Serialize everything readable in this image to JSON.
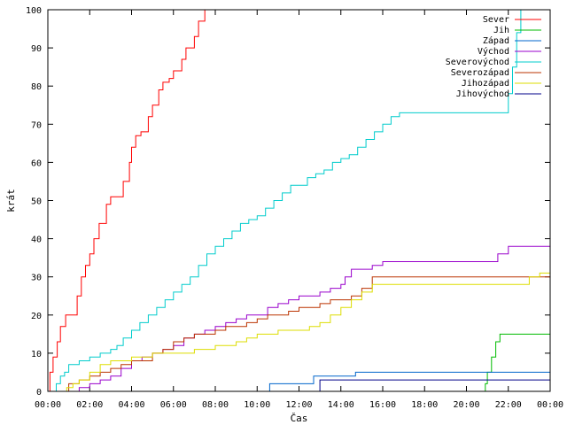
{
  "chart_data": {
    "type": "line",
    "title": "",
    "xlabel": "Čas",
    "ylabel": "krát",
    "xlim": [
      0,
      24
    ],
    "ylim": [
      0,
      100
    ],
    "x_unit": "hours",
    "x_ticks": [
      "00:00",
      "02:00",
      "04:00",
      "06:00",
      "08:00",
      "10:00",
      "12:00",
      "14:00",
      "16:00",
      "18:00",
      "20:00",
      "22:00",
      "00:00"
    ],
    "y_ticks": [
      0,
      10,
      20,
      30,
      40,
      50,
      60,
      70,
      80,
      90,
      100
    ],
    "grid": false,
    "legend_position": "top-right",
    "series": [
      {
        "name": "Sever",
        "color": "#ff0000",
        "x": [
          0,
          0.1,
          0.25,
          0.45,
          0.6,
          0.85,
          1.0,
          1.05,
          1.4,
          1.6,
          1.8,
          2.0,
          2.2,
          2.45,
          2.8,
          3.0,
          3.3,
          3.6,
          3.9,
          4.0,
          4.2,
          4.45,
          4.6,
          4.8,
          5.0,
          5.3,
          5.5,
          5.8,
          6.0,
          6.4,
          6.6,
          6.8,
          7.0,
          7.2,
          7.5,
          7.8,
          8.0,
          8.05,
          8.1
        ],
        "values": [
          0,
          5,
          9,
          13,
          17,
          20,
          20,
          20,
          25,
          30,
          33,
          36,
          40,
          44,
          49,
          51,
          51,
          55,
          60,
          64,
          67,
          68,
          68,
          72,
          75,
          79,
          81,
          82,
          84,
          87,
          90,
          90,
          93,
          97,
          100,
          100,
          100,
          100,
          100
        ]
      },
      {
        "name": "Jih",
        "color": "#00bb00",
        "x": [
          0,
          20.8,
          20.9,
          21.0,
          21.2,
          21.4,
          21.6,
          22.0,
          23.0,
          24.0
        ],
        "values": [
          0,
          0,
          2,
          5,
          9,
          13,
          15,
          15,
          15,
          15
        ]
      },
      {
        "name": "Západ",
        "color": "#0066cc",
        "x": [
          0,
          10.5,
          10.6,
          11.0,
          12.0,
          12.5,
          12.7,
          13.0,
          13.5,
          14.0,
          14.5,
          14.7,
          15.0,
          16.0,
          18.0,
          20.0,
          22.0,
          24.0
        ],
        "values": [
          0,
          0,
          2,
          2,
          2,
          2,
          4,
          4,
          4,
          4,
          4,
          5,
          5,
          5,
          5,
          5,
          5,
          5
        ]
      },
      {
        "name": "Východ",
        "color": "#9900cc",
        "x": [
          0,
          1.5,
          2.0,
          2.5,
          3.0,
          3.5,
          4.0,
          4.5,
          5.0,
          5.5,
          6.0,
          6.5,
          7.0,
          7.5,
          8.0,
          8.5,
          9.0,
          9.5,
          10.0,
          10.5,
          11.0,
          11.5,
          12.0,
          12.5,
          13.0,
          13.5,
          14.0,
          14.2,
          14.5,
          15.0,
          15.5,
          16.0,
          17.0,
          18.0,
          19.0,
          20.0,
          21.0,
          21.5,
          22.0,
          23.0,
          24.0
        ],
        "values": [
          0,
          1,
          2,
          3,
          4,
          6,
          8,
          9,
          10,
          11,
          12,
          14,
          15,
          16,
          17,
          18,
          19,
          20,
          20,
          22,
          23,
          24,
          25,
          25,
          26,
          27,
          28,
          30,
          32,
          32,
          33,
          34,
          34,
          34,
          34,
          34,
          34,
          36,
          38,
          38,
          38
        ]
      },
      {
        "name": "Severovýchod",
        "color": "#00cccc",
        "x": [
          0,
          0.4,
          0.6,
          0.8,
          1.0,
          1.5,
          2.0,
          2.5,
          3.0,
          3.3,
          3.6,
          4.0,
          4.4,
          4.8,
          5.2,
          5.6,
          6.0,
          6.4,
          6.8,
          7.2,
          7.6,
          8.0,
          8.4,
          8.8,
          9.2,
          9.6,
          10.0,
          10.4,
          10.8,
          11.2,
          11.6,
          12.0,
          12.4,
          12.8,
          13.2,
          13.6,
          14.0,
          14.4,
          14.8,
          15.2,
          15.6,
          16.0,
          16.4,
          16.8,
          18.0,
          19.0,
          20.0,
          21.0,
          21.8,
          22.0,
          22.2,
          22.4,
          22.6
        ],
        "values": [
          0,
          2,
          4,
          5,
          7,
          8,
          9,
          10,
          11,
          12,
          14,
          16,
          18,
          20,
          22,
          24,
          26,
          28,
          30,
          33,
          36,
          38,
          40,
          42,
          44,
          45,
          46,
          48,
          50,
          52,
          54,
          54,
          56,
          57,
          58,
          60,
          61,
          62,
          64,
          66,
          68,
          70,
          72,
          73,
          73,
          73,
          73,
          73,
          73,
          78,
          85,
          94,
          100
        ]
      },
      {
        "name": "Severozápad",
        "color": "#bb3300",
        "x": [
          0,
          1.0,
          1.5,
          2.0,
          2.5,
          3.0,
          3.5,
          4.0,
          5.0,
          5.5,
          6.0,
          6.5,
          7.0,
          7.5,
          8.0,
          8.5,
          9.0,
          9.5,
          10.0,
          10.5,
          11.0,
          11.5,
          12.0,
          12.5,
          13.0,
          13.5,
          14.0,
          14.5,
          15.0,
          15.5,
          16.0,
          17.0,
          18.0,
          19.0,
          20.0,
          21.0,
          22.0,
          23.0,
          24.0
        ],
        "values": [
          0,
          2,
          3,
          4,
          5,
          6,
          7,
          8,
          10,
          11,
          13,
          14,
          15,
          15,
          16,
          17,
          17,
          18,
          19,
          20,
          20,
          21,
          22,
          22,
          23,
          24,
          24,
          25,
          27,
          30,
          30,
          30,
          30,
          30,
          30,
          30,
          30,
          30,
          30
        ]
      },
      {
        "name": "Jihozápad",
        "color": "#dddd00",
        "x": [
          0,
          0.9,
          1.2,
          1.5,
          2.0,
          2.5,
          3.0,
          3.5,
          4.0,
          4.5,
          5.0,
          5.5,
          6.0,
          6.5,
          7.0,
          7.5,
          8.0,
          8.5,
          9.0,
          9.5,
          10.0,
          10.5,
          11.0,
          11.5,
          12.0,
          12.5,
          13.0,
          13.5,
          14.0,
          14.5,
          15.0,
          15.5,
          16.0,
          17.0,
          18.0,
          19.0,
          20.0,
          21.0,
          22.0,
          23.0,
          23.5,
          24.0
        ],
        "values": [
          0,
          1,
          2,
          3,
          5,
          7,
          8,
          8,
          9,
          9,
          10,
          10,
          10,
          10,
          11,
          11,
          12,
          12,
          13,
          14,
          15,
          15,
          16,
          16,
          16,
          17,
          18,
          20,
          22,
          24,
          26,
          28,
          28,
          28,
          28,
          28,
          28,
          28,
          28,
          30,
          31,
          31
        ]
      },
      {
        "name": "Jihovýchod",
        "color": "#000088",
        "x": [
          0,
          12.8,
          13.0,
          13.5,
          14.0,
          15.0,
          16.0,
          18.0,
          20.0,
          22.0,
          24.0
        ],
        "values": [
          0,
          0,
          3,
          3,
          3,
          3,
          3,
          3,
          3,
          3,
          3
        ]
      }
    ]
  }
}
